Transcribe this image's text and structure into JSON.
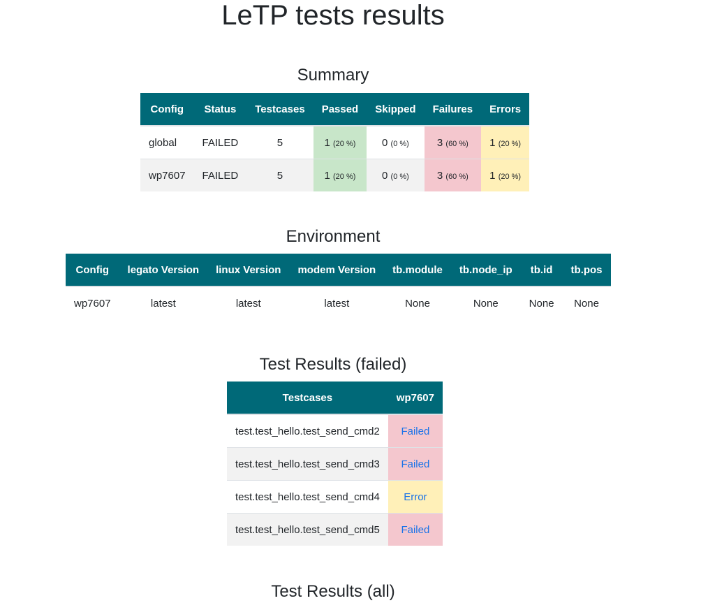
{
  "title": "LeTP tests results",
  "summary": {
    "title": "Summary",
    "headers": [
      "Config",
      "Status",
      "Testcases",
      "Passed",
      "Skipped",
      "Failures",
      "Errors"
    ],
    "rows": [
      {
        "config": "global",
        "status": "FAILED",
        "testcases": "5",
        "passed": "1",
        "passed_pct": "(20 %)",
        "skipped": "0",
        "skipped_pct": "(0 %)",
        "failures": "3",
        "failures_pct": "(60 %)",
        "errors": "1",
        "errors_pct": "(20 %)"
      },
      {
        "config": "wp7607",
        "status": "FAILED",
        "testcases": "5",
        "passed": "1",
        "passed_pct": "(20 %)",
        "skipped": "0",
        "skipped_pct": "(0 %)",
        "failures": "3",
        "failures_pct": "(60 %)",
        "errors": "1",
        "errors_pct": "(20 %)"
      }
    ]
  },
  "environment": {
    "title": "Environment",
    "headers": [
      "Config",
      "legato Version",
      "linux Version",
      "modem Version",
      "tb.module",
      "tb.node_ip",
      "tb.id",
      "tb.pos"
    ],
    "rows": [
      [
        "wp7607",
        "latest",
        "latest",
        "latest",
        "None",
        "None",
        "None",
        "None"
      ]
    ]
  },
  "failed_results": {
    "title": "Test Results (failed)",
    "headers": [
      "Testcases",
      "wp7607"
    ],
    "rows": [
      {
        "testcase": "test.test_hello.test_send_cmd2",
        "result": "Failed",
        "state": "failed"
      },
      {
        "testcase": "test.test_hello.test_send_cmd3",
        "result": "Failed",
        "state": "failed"
      },
      {
        "testcase": "test.test_hello.test_send_cmd4",
        "result": "Error",
        "state": "error"
      },
      {
        "testcase": "test.test_hello.test_send_cmd5",
        "result": "Failed",
        "state": "failed"
      }
    ]
  },
  "all_results": {
    "title": "Test Results (all)"
  },
  "colors": {
    "header_bg": "#006978",
    "passed_bg": "#c8e6c9",
    "failed_bg": "#f4c7ce",
    "error_bg": "#fff0b8",
    "link": "#1a73e8"
  }
}
